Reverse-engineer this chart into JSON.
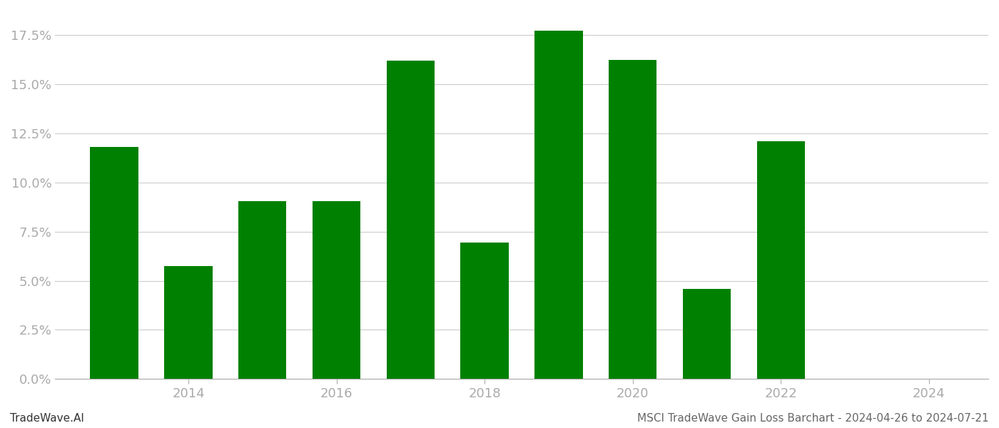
{
  "years": [
    2013,
    2014,
    2015,
    2016,
    2017,
    2018,
    2019,
    2020,
    2021,
    2022,
    2023
  ],
  "values": [
    0.1182,
    0.0575,
    0.0905,
    0.0905,
    0.162,
    0.0695,
    0.1775,
    0.1625,
    0.046,
    0.121,
    0.0
  ],
  "bar_color": "#008000",
  "background_color": "#ffffff",
  "footer_left": "TradeWave.AI",
  "footer_right": "MSCI TradeWave Gain Loss Barchart - 2024-04-26 to 2024-07-21",
  "ylim": [
    0,
    0.1875
  ],
  "yticks": [
    0.0,
    0.025,
    0.05,
    0.075,
    0.1,
    0.125,
    0.15,
    0.175
  ],
  "xticks": [
    2014,
    2016,
    2018,
    2020,
    2022,
    2024
  ],
  "xlim": [
    2012.2,
    2024.8
  ],
  "grid_color": "#cccccc",
  "tick_color": "#aaaaaa",
  "font_color": "#aaaaaa",
  "footer_font_size": 11,
  "axis_font_size": 13,
  "bar_width": 0.65
}
